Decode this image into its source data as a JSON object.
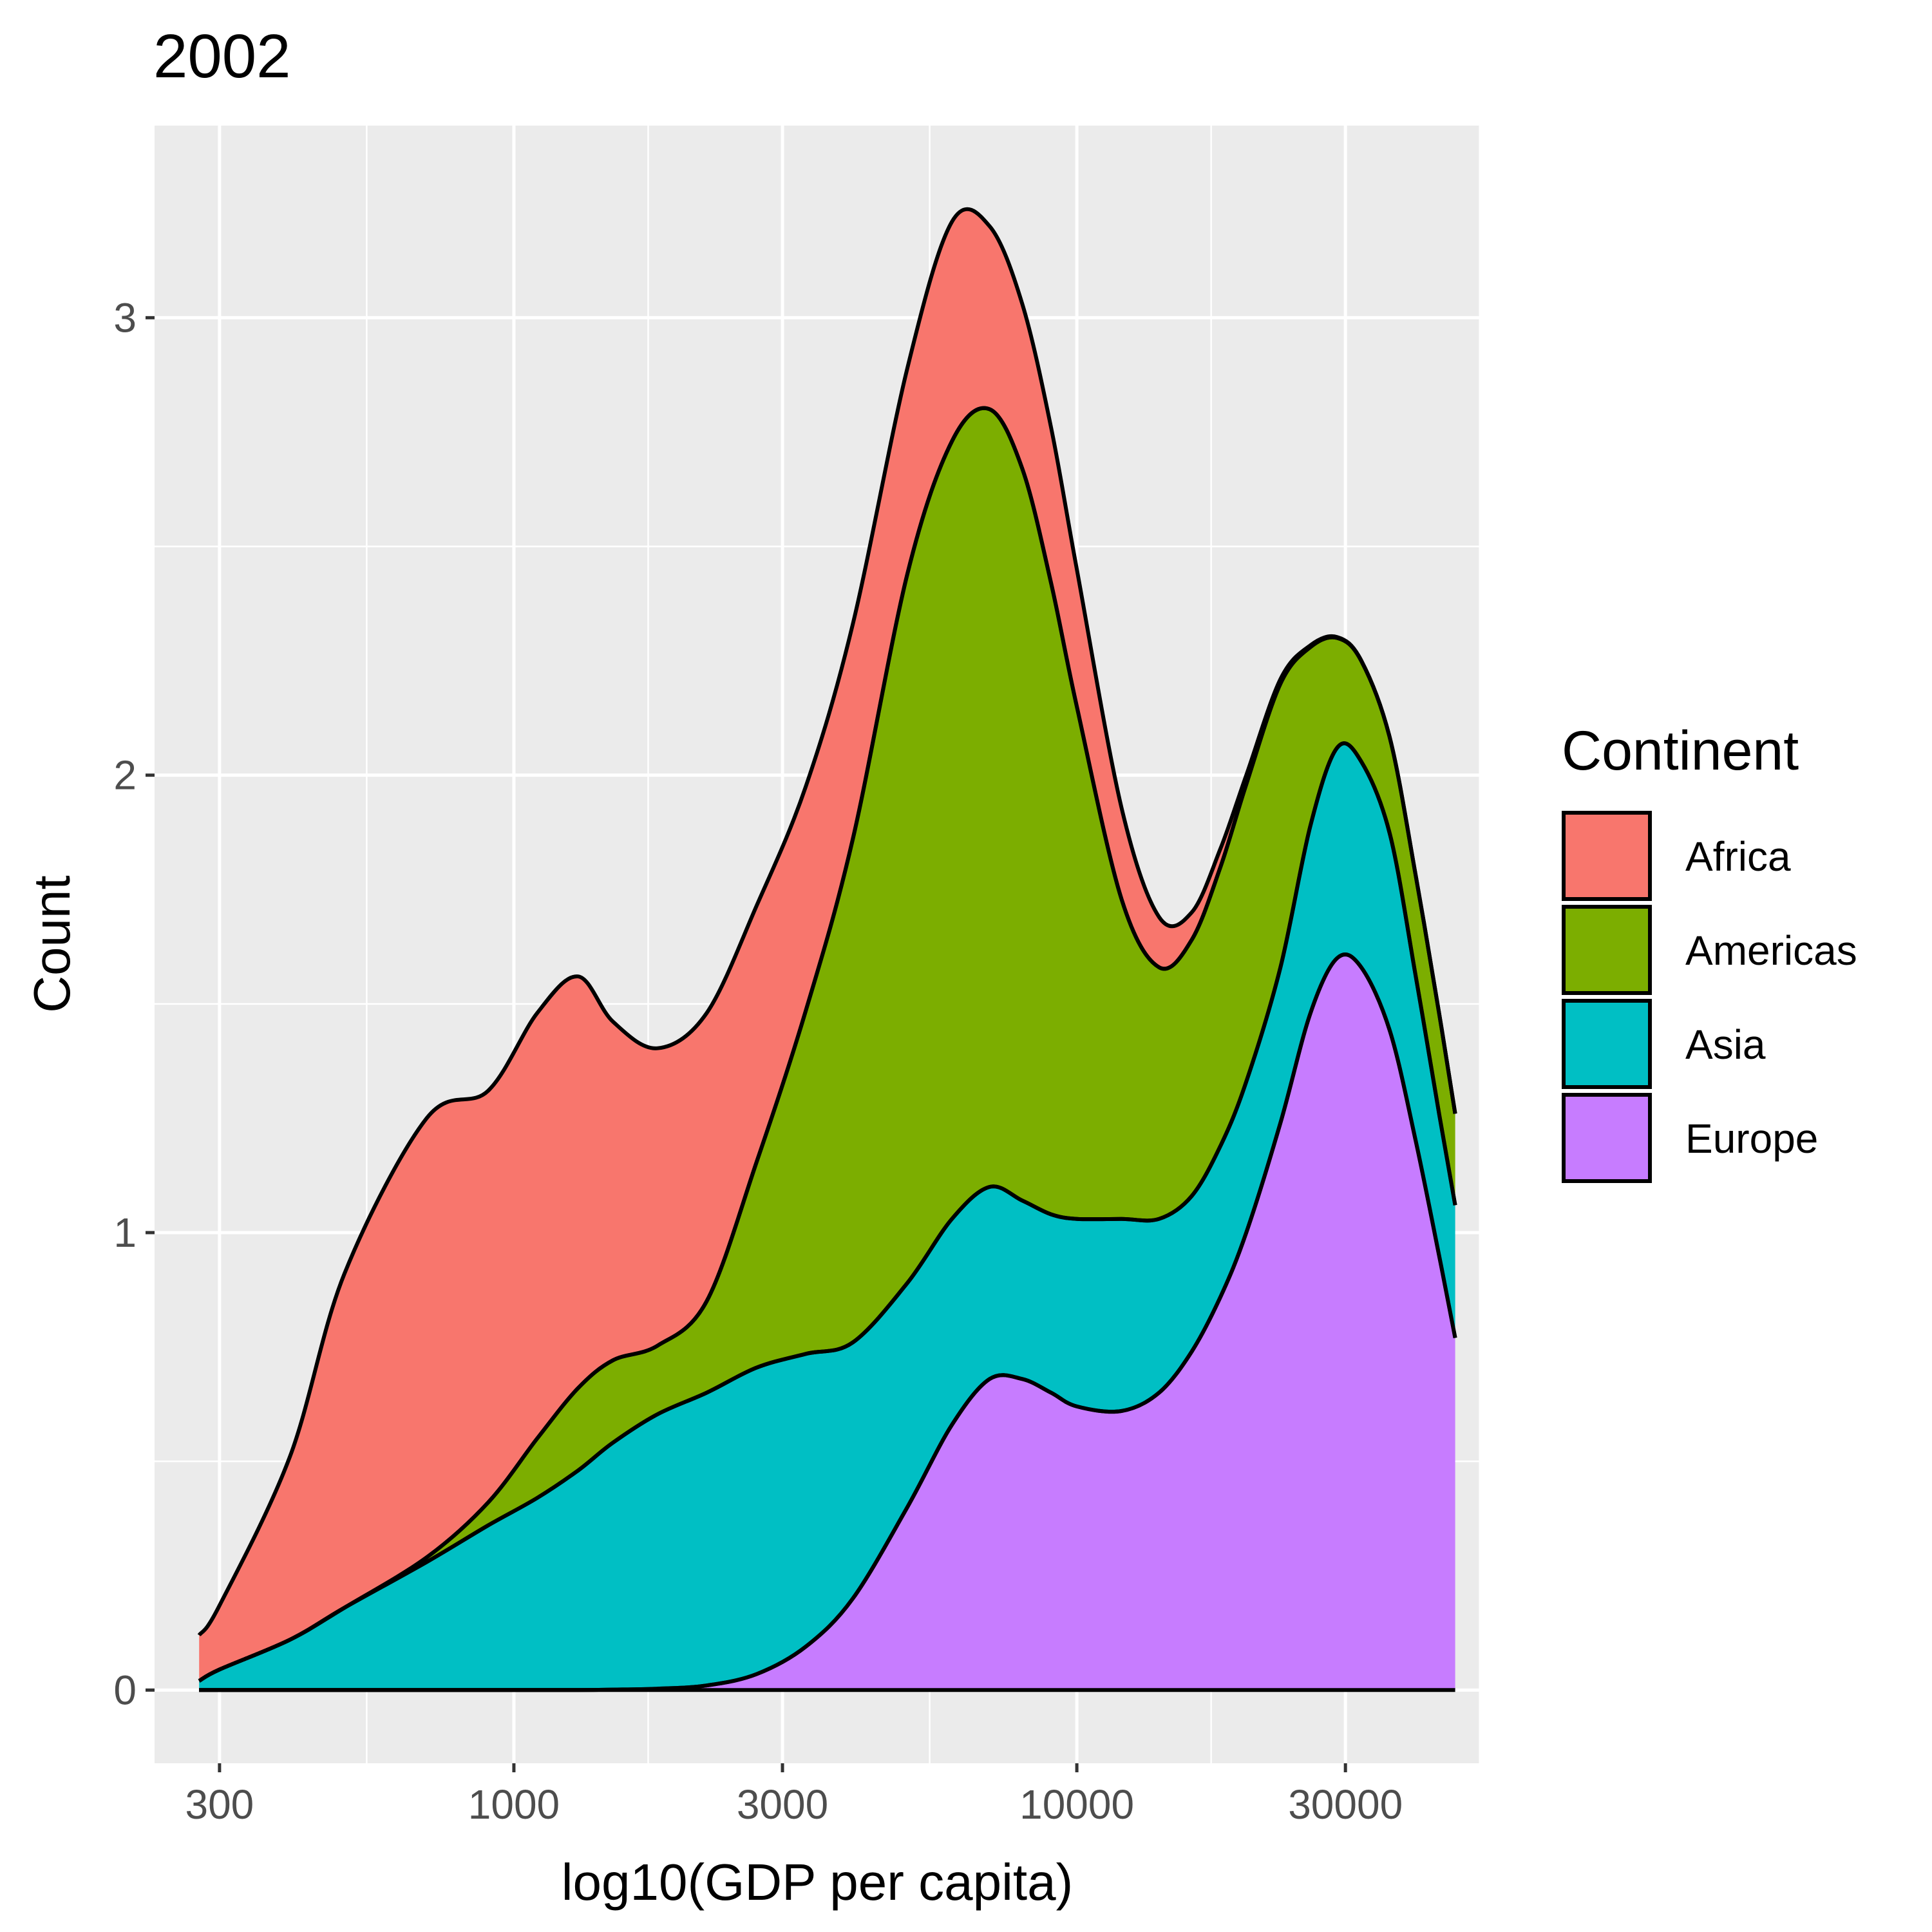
{
  "chart_data": {
    "type": "area",
    "stacked": true,
    "title": "2002",
    "xlabel": "log10(GDP per capita)",
    "ylabel": "Count",
    "x_scale": "log10",
    "xlim": [
      230,
      52000
    ],
    "ylim": [
      -0.16,
      3.42
    ],
    "x_ticks": [
      300,
      1000,
      3000,
      10000,
      30000
    ],
    "x_tick_labels": [
      "300",
      "1000",
      "3000",
      "10000",
      "30000"
    ],
    "y_ticks": [
      0,
      1,
      2,
      3
    ],
    "y_tick_labels": [
      "0",
      "1",
      "2",
      "3"
    ],
    "grid": true,
    "legend": {
      "title": "Continent",
      "position": "right"
    },
    "x": [
      276,
      300,
      400,
      500,
      700,
      900,
      1100,
      1300,
      1500,
      1800,
      2200,
      2700,
      3300,
      4000,
      5000,
      6000,
      7000,
      8000,
      9000,
      10000,
      12000,
      14000,
      16000,
      18000,
      20000,
      23000,
      26000,
      29000,
      32000,
      36000,
      40000,
      44000,
      47000
    ],
    "series": [
      {
        "name": "Europe",
        "color": "#C77CFF",
        "values": [
          0.0,
          0.0,
          0.0,
          0.0,
          0.0,
          0.0,
          0.0,
          0.0,
          0.001,
          0.003,
          0.01,
          0.035,
          0.095,
          0.2,
          0.4,
          0.58,
          0.68,
          0.68,
          0.65,
          0.62,
          0.61,
          0.65,
          0.74,
          0.86,
          1.0,
          1.24,
          1.48,
          1.6,
          1.58,
          1.44,
          1.2,
          0.95,
          0.77
        ]
      },
      {
        "name": "Asia",
        "color": "#00BFC4",
        "values": [
          0.02,
          0.045,
          0.11,
          0.18,
          0.28,
          0.36,
          0.42,
          0.48,
          0.54,
          0.6,
          0.64,
          0.67,
          0.64,
          0.56,
          0.49,
          0.45,
          0.42,
          0.39,
          0.39,
          0.41,
          0.42,
          0.38,
          0.34,
          0.33,
          0.33,
          0.34,
          0.41,
          0.46,
          0.45,
          0.43,
          0.36,
          0.31,
          0.29
        ]
      },
      {
        "name": "Americas",
        "color": "#7CAE00",
        "values": [
          0.0,
          0.0,
          0.0,
          0.0,
          0.01,
          0.05,
          0.13,
          0.18,
          0.18,
          0.15,
          0.2,
          0.45,
          0.75,
          1.1,
          1.55,
          1.7,
          1.7,
          1.6,
          1.38,
          1.12,
          0.7,
          0.55,
          0.56,
          0.61,
          0.65,
          0.62,
          0.39,
          0.24,
          0.22,
          0.21,
          0.22,
          0.22,
          0.2
        ]
      },
      {
        "name": "Africa",
        "color": "#F8766D",
        "values": [
          0.1,
          0.14,
          0.4,
          0.73,
          0.96,
          0.9,
          0.93,
          0.9,
          0.74,
          0.65,
          0.63,
          0.56,
          0.49,
          0.47,
          0.45,
          0.48,
          0.4,
          0.36,
          0.34,
          0.3,
          0.2,
          0.11,
          0.06,
          0.04,
          0.02,
          0.01,
          0.004,
          0.002,
          0.001,
          0.0,
          0.0,
          0.0,
          0.0
        ]
      }
    ],
    "legend_order": [
      "Africa",
      "Americas",
      "Asia",
      "Europe"
    ]
  }
}
